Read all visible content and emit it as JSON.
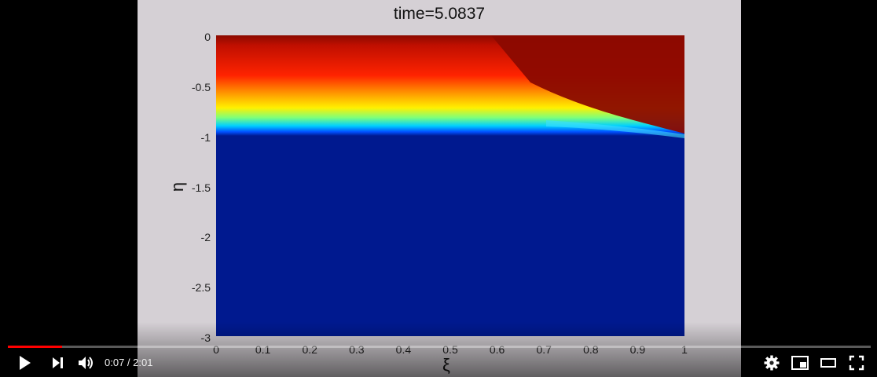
{
  "player": {
    "current_time": "0:07",
    "separator": " / ",
    "duration": "2:01",
    "progress_fraction": 0.063,
    "accent_color": "#ff0000",
    "icons": [
      "play-icon",
      "next-icon",
      "volume-icon",
      "settings-icon",
      "miniplayer-icon",
      "theater-mode-icon",
      "fullscreen-icon"
    ]
  },
  "chart_data": {
    "type": "heatmap",
    "title": "time=5.0837",
    "xlabel": "ξ",
    "ylabel": "η",
    "xlim": [
      0,
      1
    ],
    "ylim": [
      -3,
      0
    ],
    "xticks": [
      "0",
      "0.1",
      "0.2",
      "0.3",
      "0.4",
      "0.5",
      "0.6",
      "0.7",
      "0.8",
      "0.9",
      "1"
    ],
    "yticks": [
      "0",
      "-0.5",
      "-1",
      "-1.5",
      "-2",
      "-2.5",
      "-3"
    ],
    "colormap": "jet",
    "interface_profile": {
      "xi": [
        0,
        0.6,
        0.7,
        0.8,
        0.9,
        1.0
      ],
      "eta": [
        -0.98,
        -0.98,
        -0.96,
        -0.93,
        -0.96,
        -1.0
      ]
    },
    "colors": {
      "low": "#00198f",
      "high": "#8b0a00",
      "background": "#d5d0d5"
    }
  }
}
